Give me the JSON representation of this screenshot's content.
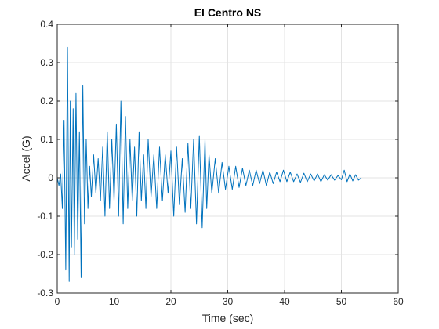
{
  "chart_data": {
    "type": "line",
    "title": "El Centro NS",
    "xlabel": "Time (sec)",
    "ylabel": "Accel (G)",
    "xlim": [
      0,
      60
    ],
    "ylim": [
      -0.3,
      0.4
    ],
    "xticks": [
      0,
      10,
      20,
      30,
      40,
      50,
      60
    ],
    "yticks": [
      -0.3,
      -0.2,
      -0.1,
      0,
      0.1,
      0.2,
      0.3,
      0.4
    ],
    "xtick_labels": [
      "0",
      "10",
      "20",
      "30",
      "40",
      "50",
      "60"
    ],
    "ytick_labels": [
      "-0.3",
      "-0.2",
      "-0.1",
      "0",
      "0.1",
      "0.2",
      "0.3",
      "0.4"
    ],
    "grid": true,
    "series": [
      {
        "color": "#0072bd",
        "x": [
          0.0,
          0.3,
          0.6,
          0.9,
          1.2,
          1.5,
          1.8,
          2.1,
          2.3,
          2.5,
          2.8,
          3.0,
          3.3,
          3.6,
          3.9,
          4.2,
          4.5,
          4.8,
          5.1,
          5.4,
          5.7,
          6.0,
          6.4,
          6.8,
          7.2,
          7.6,
          8.0,
          8.4,
          8.8,
          9.2,
          9.6,
          10.0,
          10.4,
          10.8,
          11.2,
          11.6,
          12.0,
          12.4,
          12.8,
          13.2,
          13.6,
          14.0,
          14.4,
          14.8,
          15.2,
          15.6,
          16.0,
          16.5,
          17.0,
          17.5,
          18.0,
          18.5,
          19.0,
          19.5,
          20.0,
          20.5,
          21.0,
          21.5,
          22.0,
          22.5,
          23.0,
          23.5,
          24.0,
          24.5,
          25.0,
          25.5,
          26.0,
          26.3,
          26.7,
          27.2,
          27.8,
          28.4,
          29.0,
          29.6,
          30.2,
          30.8,
          31.4,
          32.0,
          32.6,
          33.2,
          33.8,
          34.4,
          35.0,
          35.6,
          36.2,
          36.8,
          37.4,
          38.0,
          38.6,
          39.2,
          39.8,
          40.4,
          41.0,
          41.6,
          42.2,
          42.8,
          43.4,
          44.0,
          44.6,
          45.2,
          45.8,
          46.4,
          47.0,
          47.6,
          48.2,
          48.8,
          49.4,
          50.0,
          50.5,
          51.0,
          51.5,
          52.0,
          52.5,
          53.0,
          53.5
        ],
        "y": [
          0.0,
          -0.02,
          0.01,
          -0.08,
          0.15,
          -0.24,
          0.34,
          -0.27,
          0.2,
          -0.18,
          0.18,
          -0.2,
          0.22,
          -0.16,
          0.12,
          -0.26,
          0.24,
          -0.12,
          0.1,
          -0.08,
          0.03,
          -0.05,
          0.06,
          -0.04,
          0.05,
          -0.06,
          0.08,
          -0.1,
          0.12,
          -0.08,
          0.1,
          -0.06,
          0.14,
          -0.1,
          0.2,
          -0.12,
          0.16,
          -0.08,
          0.1,
          -0.06,
          0.08,
          -0.1,
          0.12,
          -0.06,
          0.06,
          -0.08,
          0.1,
          -0.05,
          0.06,
          -0.08,
          0.08,
          -0.06,
          0.06,
          -0.04,
          0.07,
          -0.1,
          0.08,
          -0.07,
          0.05,
          -0.09,
          0.09,
          -0.08,
          0.1,
          -0.12,
          0.11,
          -0.13,
          0.1,
          -0.08,
          0.06,
          -0.04,
          0.05,
          -0.04,
          0.04,
          -0.03,
          0.03,
          -0.03,
          0.03,
          -0.025,
          0.025,
          -0.02,
          0.02,
          -0.02,
          0.02,
          -0.015,
          0.02,
          -0.02,
          0.015,
          -0.015,
          0.015,
          -0.01,
          0.02,
          -0.01,
          0.015,
          -0.01,
          0.01,
          -0.012,
          0.012,
          -0.01,
          0.01,
          -0.008,
          0.01,
          -0.01,
          0.008,
          -0.006,
          0.008,
          -0.006,
          0.006,
          -0.005,
          0.02,
          -0.01,
          0.01,
          -0.008,
          0.008,
          -0.006,
          0.0
        ]
      }
    ]
  }
}
